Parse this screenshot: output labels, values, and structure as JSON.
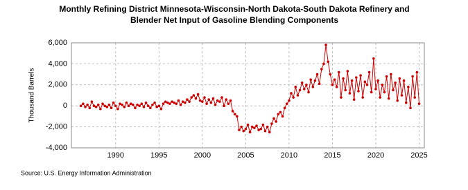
{
  "chart_data": {
    "type": "line",
    "title": [
      "Monthly Refining District Minnesota-Wisconsin-North Dakota-South Dakota Refinery and",
      "Blender Net Input of Gasoline Blending Components"
    ],
    "y_label": "Thousand Barrels",
    "source": "Source: U.S. Energy Information Administration",
    "color": "#cc0000",
    "grid": true,
    "xlim": [
      1984.9,
      2025.6
    ],
    "ylim": [
      -4000,
      6000
    ],
    "xticks": [
      1990,
      1995,
      2000,
      2005,
      2010,
      2015,
      2020,
      2025
    ],
    "yticks": [
      {
        "value": 6000,
        "label": "6,000"
      },
      {
        "value": 4000,
        "label": "4,000"
      },
      {
        "value": 2000,
        "label": "2,000"
      },
      0,
      {
        "value": -2000,
        "label": "-2,000"
      },
      {
        "value": -4000,
        "label": "-4,000"
      }
    ],
    "x": [
      1986,
      1986.25,
      1986.5,
      1986.75,
      1987,
      1987.25,
      1987.5,
      1987.75,
      1988,
      1988.25,
      1988.5,
      1988.75,
      1989,
      1989.25,
      1989.5,
      1989.75,
      1990,
      1990.25,
      1990.5,
      1990.75,
      1991,
      1991.25,
      1991.5,
      1991.75,
      1992,
      1992.25,
      1992.5,
      1992.75,
      1993,
      1993.25,
      1993.5,
      1993.75,
      1994,
      1994.25,
      1994.5,
      1994.75,
      1995,
      1995.25,
      1995.5,
      1995.75,
      1996,
      1996.25,
      1996.5,
      1996.75,
      1997,
      1997.25,
      1997.5,
      1997.75,
      1998,
      1998.25,
      1998.5,
      1998.75,
      1999,
      1999.25,
      1999.5,
      1999.75,
      2000,
      2000.25,
      2000.5,
      2000.75,
      2001,
      2001.25,
      2001.5,
      2001.75,
      2002,
      2002.25,
      2002.5,
      2002.75,
      2003,
      2003.25,
      2003.5,
      2003.75,
      2004,
      2004.25,
      2004.5,
      2004.75,
      2005,
      2005.25,
      2005.5,
      2005.75,
      2006,
      2006.25,
      2006.5,
      2006.75,
      2007,
      2007.25,
      2007.5,
      2007.75,
      2008,
      2008.25,
      2008.5,
      2008.75,
      2009,
      2009.25,
      2009.5,
      2009.75,
      2010,
      2010.25,
      2010.5,
      2010.75,
      2011,
      2011.25,
      2011.5,
      2011.75,
      2012,
      2012.25,
      2012.5,
      2012.75,
      2013,
      2013.25,
      2013.5,
      2013.75,
      2014,
      2014.25,
      2014.5,
      2014.75,
      2015,
      2015.25,
      2015.5,
      2015.75,
      2016,
      2016.25,
      2016.5,
      2016.75,
      2017,
      2017.25,
      2017.5,
      2017.75,
      2018,
      2018.25,
      2018.5,
      2018.75,
      2019,
      2019.25,
      2019.5,
      2019.75,
      2020,
      2020.25,
      2020.5,
      2020.75,
      2021,
      2021.25,
      2021.5,
      2021.75,
      2022,
      2022.25,
      2022.5,
      2022.75,
      2023,
      2023.25,
      2023.5,
      2023.75,
      2024,
      2024.25,
      2024.5,
      2024.75,
      2025
    ],
    "values": [
      0,
      200,
      -100,
      100,
      -200,
      400,
      0,
      -100,
      100,
      -300,
      200,
      0,
      -100,
      100,
      -200,
      300,
      0,
      -300,
      200,
      100,
      -100,
      300,
      0,
      200,
      100,
      -200,
      100,
      0,
      200,
      -100,
      300,
      0,
      -200,
      100,
      300,
      -100,
      0,
      -300,
      200,
      400,
      300,
      200,
      400,
      300,
      200,
      500,
      100,
      400,
      300,
      600,
      400,
      800,
      1000,
      700,
      1100,
      500,
      400,
      800,
      200,
      600,
      300,
      700,
      100,
      500,
      400,
      800,
      0,
      600,
      200,
      500,
      -500,
      -800,
      -1000,
      -2300,
      -2000,
      -2400,
      -2200,
      -1800,
      -2500,
      -2000,
      -2100,
      -1900,
      -2300,
      -2200,
      -1800,
      -2400,
      -2000,
      -2500,
      -1700,
      -1200,
      -1500,
      -800,
      -600,
      -1000,
      -200,
      200,
      500,
      1200,
      800,
      1800,
      1000,
      1500,
      2200,
      1600,
      2000,
      1300,
      2500,
      1800,
      2400,
      3000,
      2100,
      3500,
      4000,
      5800,
      4200,
      3000,
      2000,
      2500,
      1800,
      3200,
      800,
      2600,
      1500,
      3300,
      1200,
      2400,
      600,
      2700,
      1400,
      2900,
      800,
      2300,
      2000,
      3200,
      1300,
      4500,
      1600,
      2400,
      800,
      2000,
      1300,
      2800,
      700,
      3000,
      1500,
      2200,
      500,
      2600,
      1000,
      2400,
      300,
      1800,
      -200,
      2800,
      800,
      3200,
      200
    ]
  }
}
